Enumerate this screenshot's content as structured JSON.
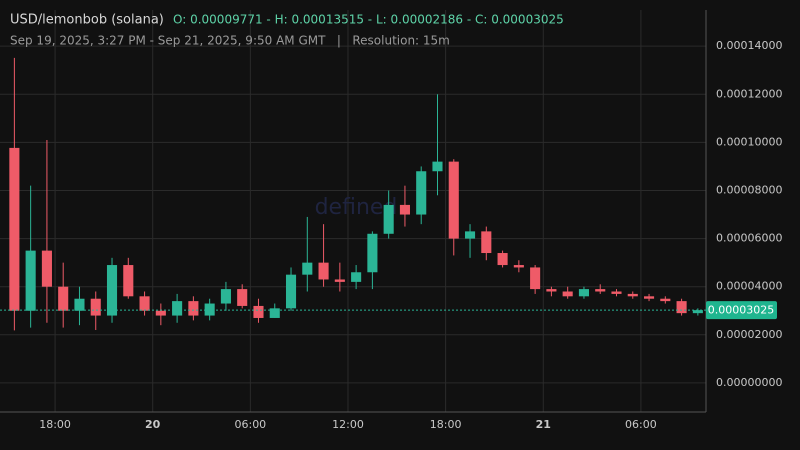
{
  "chart_data": {
    "type": "candlestick",
    "title": "USD/lemonbob (solana)",
    "stats": "O: 0.00009771 - H: 0.00013515 - L: 0.00002186 - C: 0.00003025",
    "subtitle": "Sep 19, 2025, 3:27 PM - Sep 21, 2025, 9:50 AM GMT   |   Resolution: 15m",
    "watermark": "defined",
    "up_color": "#2bb596",
    "down_color": "#ef5b68",
    "grid": true,
    "x": [
      "2025-09-19 15:00",
      "2025-09-19 16:00",
      "2025-09-19 17:00",
      "2025-09-19 18:00",
      "2025-09-19 19:00",
      "2025-09-19 20:00",
      "2025-09-19 21:00",
      "2025-09-19 22:00",
      "2025-09-19 23:00",
      "2025-09-20 00:00",
      "2025-09-20 01:00",
      "2025-09-20 02:00",
      "2025-09-20 03:00",
      "2025-09-20 04:00",
      "2025-09-20 05:00",
      "2025-09-20 06:00",
      "2025-09-20 07:00",
      "2025-09-20 08:00",
      "2025-09-20 09:00",
      "2025-09-20 10:00",
      "2025-09-20 11:00",
      "2025-09-20 12:00",
      "2025-09-20 13:00",
      "2025-09-20 14:00",
      "2025-09-20 15:00",
      "2025-09-20 16:00",
      "2025-09-20 17:00",
      "2025-09-20 18:00",
      "2025-09-20 19:00",
      "2025-09-20 20:00",
      "2025-09-20 21:00",
      "2025-09-20 22:00",
      "2025-09-20 23:00",
      "2025-09-21 00:00",
      "2025-09-21 01:00",
      "2025-09-21 02:00",
      "2025-09-21 03:00",
      "2025-09-21 04:00",
      "2025-09-21 05:00",
      "2025-09-21 06:00",
      "2025-09-21 07:00",
      "2025-09-21 08:00",
      "2025-09-21 09:00"
    ],
    "open": [
      9.771e-05,
      3e-05,
      5.5e-05,
      4e-05,
      3e-05,
      3.5e-05,
      2.8e-05,
      4.9e-05,
      3.6e-05,
      3e-05,
      2.8e-05,
      3.4e-05,
      2.8e-05,
      3.3e-05,
      3.9e-05,
      3.2e-05,
      2.7e-05,
      3.1e-05,
      4.5e-05,
      5e-05,
      4.3e-05,
      4.2e-05,
      4.6e-05,
      6.2e-05,
      7.4e-05,
      7e-05,
      8.8e-05,
      9.2e-05,
      6e-05,
      6.3e-05,
      5.4e-05,
      4.9e-05,
      4.8e-05,
      3.9e-05,
      3.8e-05,
      3.6e-05,
      3.9e-05,
      3.8e-05,
      3.7e-05,
      3.6e-05,
      3.5e-05,
      3.4e-05,
      2.9e-05
    ],
    "high": [
      0.00013515,
      8.2e-05,
      0.000101,
      5e-05,
      4e-05,
      3.8e-05,
      5.2e-05,
      5.2e-05,
      3.8e-05,
      3.3e-05,
      3.7e-05,
      3.6e-05,
      3.5e-05,
      4.2e-05,
      4.1e-05,
      3.5e-05,
      3.3e-05,
      4.8e-05,
      6.9e-05,
      6.6e-05,
      5e-05,
      4.9e-05,
      6.3e-05,
      8e-05,
      8.2e-05,
      9e-05,
      0.00012,
      9.3e-05,
      6.6e-05,
      6.5e-05,
      5.5e-05,
      5.1e-05,
      4.9e-05,
      4e-05,
      4e-05,
      4e-05,
      4.1e-05,
      3.9e-05,
      3.8e-05,
      3.7e-05,
      3.6e-05,
      3.5e-05,
      3.1e-05
    ],
    "low": [
      2.186e-05,
      2.3e-05,
      2.5e-05,
      2.3e-05,
      2.4e-05,
      2.2e-05,
      2.5e-05,
      3.5e-05,
      2.8e-05,
      2.4e-05,
      2.5e-05,
      2.6e-05,
      2.6e-05,
      3e-05,
      3.1e-05,
      2.5e-05,
      2.7e-05,
      3e-05,
      3.8e-05,
      4e-05,
      3.8e-05,
      3.9e-05,
      3.9e-05,
      6e-05,
      6.5e-05,
      6.6e-05,
      7.8e-05,
      5.3e-05,
      5.2e-05,
      5.1e-05,
      4.8e-05,
      4.6e-05,
      3.7e-05,
      3.6e-05,
      3.5e-05,
      3.5e-05,
      3.7e-05,
      3.6e-05,
      3.5e-05,
      3.4e-05,
      3.3e-05,
      2.8e-05,
      2.8e-05
    ],
    "close": [
      3e-05,
      5.5e-05,
      4e-05,
      3e-05,
      3.5e-05,
      2.8e-05,
      4.9e-05,
      3.6e-05,
      3e-05,
      2.8e-05,
      3.4e-05,
      2.8e-05,
      3.3e-05,
      3.9e-05,
      3.2e-05,
      2.7e-05,
      3.1e-05,
      4.5e-05,
      5e-05,
      4.3e-05,
      4.2e-05,
      4.6e-05,
      6.2e-05,
      7.4e-05,
      7e-05,
      8.8e-05,
      9.2e-05,
      6e-05,
      6.3e-05,
      5.4e-05,
      4.9e-05,
      4.8e-05,
      3.9e-05,
      3.8e-05,
      3.6e-05,
      3.9e-05,
      3.8e-05,
      3.7e-05,
      3.6e-05,
      3.5e-05,
      3.4e-05,
      2.9e-05,
      3.025e-05
    ],
    "last_price": {
      "value": 3.025e-05,
      "label": "0.00003025"
    },
    "xlim": [
      "2025-09-19 14:37",
      "2025-09-21 10:00"
    ],
    "xticks": [
      {
        "value": "2025-09-19 18:00",
        "label": "18:00"
      },
      {
        "value": "2025-09-20 00:00",
        "label": "20"
      },
      {
        "value": "2025-09-20 06:00",
        "label": "06:00"
      },
      {
        "value": "2025-09-20 12:00",
        "label": "12:00"
      },
      {
        "value": "2025-09-20 18:00",
        "label": "18:00"
      },
      {
        "value": "2025-09-21 00:00",
        "label": "21"
      },
      {
        "value": "2025-09-21 06:00",
        "label": "06:00"
      }
    ],
    "ylim": [
      -1.21e-05,
      0.0001592
    ],
    "yticks": [
      {
        "value": 0,
        "label": "0.00000000"
      },
      {
        "value": 2e-05,
        "label": "0.00002000"
      },
      {
        "value": 4e-05,
        "label": "0.00004000"
      },
      {
        "value": 6e-05,
        "label": "0.00006000"
      },
      {
        "value": 8e-05,
        "label": "0.00008000"
      },
      {
        "value": 0.0001,
        "label": "0.00010000"
      },
      {
        "value": 0.00012,
        "label": "0.00012000"
      },
      {
        "value": 0.00014,
        "label": "0.00014000"
      }
    ]
  }
}
